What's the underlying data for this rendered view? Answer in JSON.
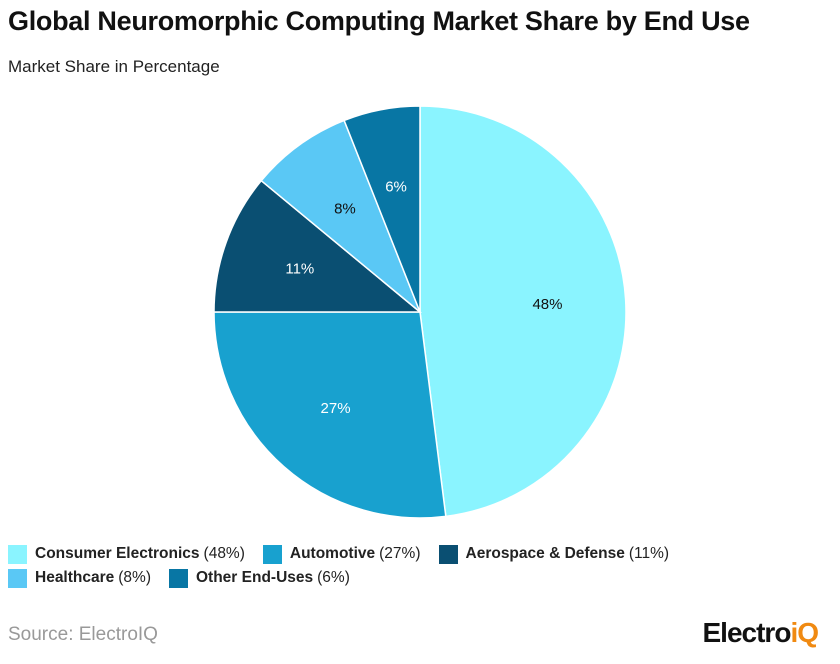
{
  "chart_data": {
    "type": "pie",
    "title": "Global Neuromorphic Computing Market Share by End Use",
    "subtitle": "Market Share in Percentage",
    "categories": [
      "Consumer Electronics",
      "Automotive",
      "Aerospace & Defense",
      "Healthcare",
      "Other End-Uses"
    ],
    "values": [
      48,
      27,
      11,
      8,
      6
    ],
    "labels": [
      "48%",
      "27%",
      "11%",
      "8%",
      "6%"
    ],
    "legend_values": [
      "(48%)",
      "(27%)",
      "(11%)",
      "(8%)",
      "(6%)"
    ],
    "colors": [
      "#8af4ff",
      "#18a1cf",
      "#0a4f72",
      "#5ac8f5",
      "#0876a4"
    ],
    "label_colors": [
      "#111111",
      "#ffffff",
      "#ffffff",
      "#111111",
      "#ffffff"
    ],
    "legend_placement": "bottom",
    "start": "top-clockwise"
  },
  "footer": {
    "source": "Source: ElectroIQ",
    "logo_main": "Electro",
    "logo_accent": "iQ"
  }
}
